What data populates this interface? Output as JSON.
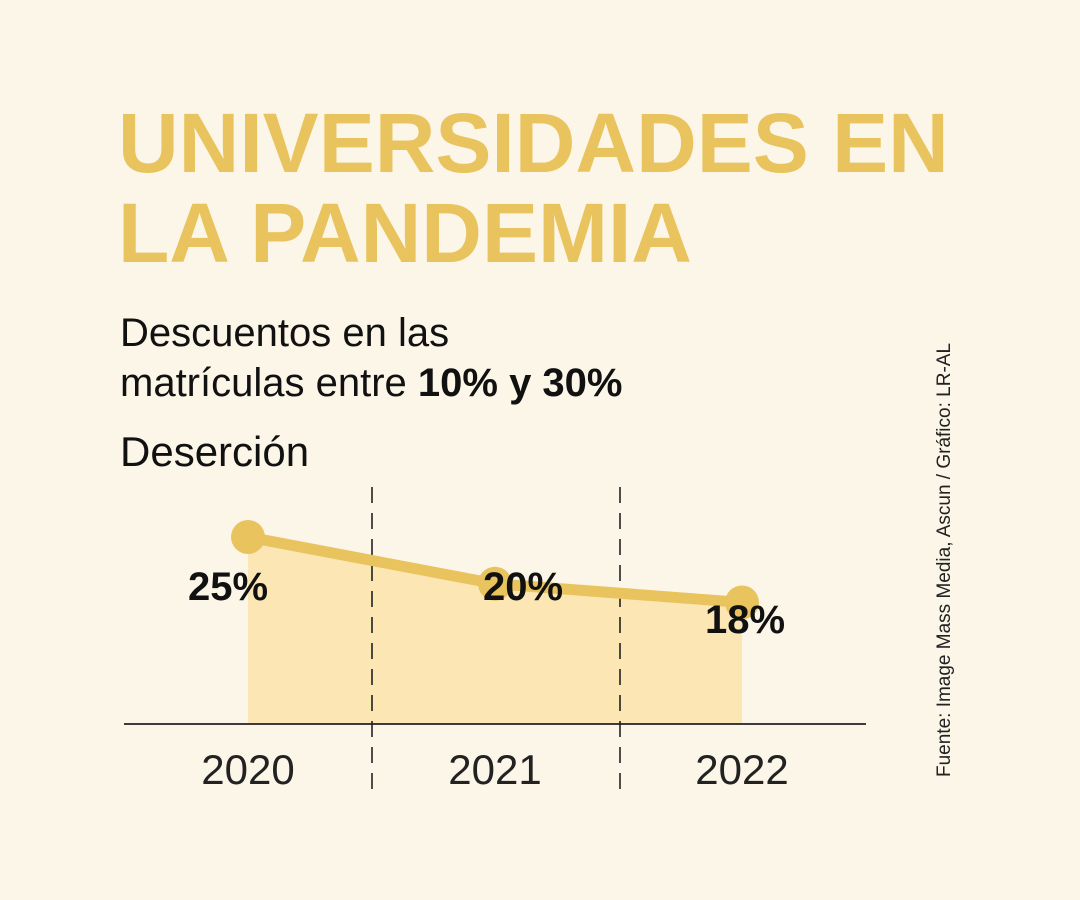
{
  "title": {
    "line1": "UNIVERSIDADES EN",
    "line2": "LA PANDEMIA"
  },
  "subtitle": {
    "line1": "Descuentos en las",
    "line2_prefix": "matrículas entre ",
    "line2_bold": "10% y 30%"
  },
  "source": "Fuente: Image Mass Media, Ascun / Gráfico: LR-AL",
  "colors": {
    "accent": "#e9c45e",
    "area_fill": "#fbe6b4",
    "background": "#fcf6e8",
    "text": "#111111"
  },
  "chart_data": {
    "type": "area",
    "title": "Deserción",
    "categories": [
      "2020",
      "2021",
      "2022"
    ],
    "series": [
      {
        "values": [
          25,
          20,
          18
        ],
        "labels": [
          "25%",
          "20%",
          "18%"
        ]
      }
    ],
    "unit": "%",
    "grid": false,
    "separators": "dashed vertical lines between years"
  }
}
